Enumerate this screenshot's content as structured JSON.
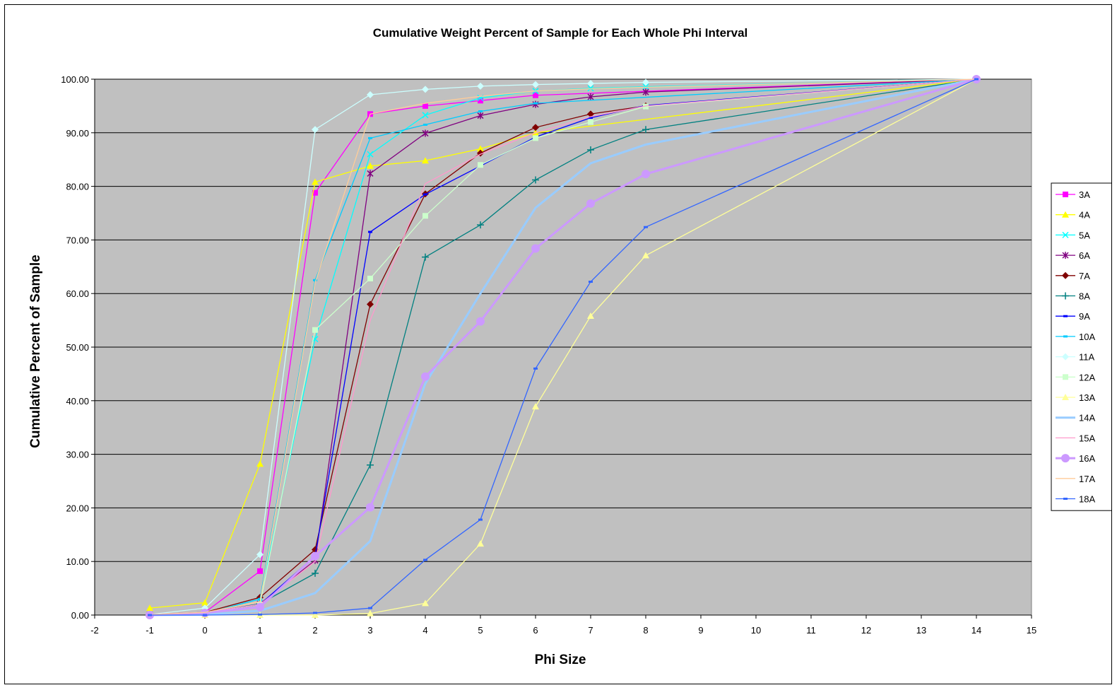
{
  "chart_data": {
    "type": "line",
    "title": "Cumulative Weight Percent of Sample for Each Whole Phi Interval",
    "xlabel": "Phi Size",
    "ylabel": "Cumulative Percent of Sample",
    "xlim": [
      -2,
      15
    ],
    "ylim": [
      0,
      100
    ],
    "x_ticks": [
      "-2",
      "-1",
      "0",
      "1",
      "2",
      "3",
      "4",
      "5",
      "6",
      "7",
      "8",
      "9",
      "10",
      "11",
      "12",
      "13",
      "14",
      "15"
    ],
    "y_ticks": [
      "0.00",
      "10.00",
      "20.00",
      "30.00",
      "40.00",
      "50.00",
      "60.00",
      "70.00",
      "80.00",
      "90.00",
      "100.00"
    ],
    "grid": "horizontal",
    "legend_position": "right",
    "plot_background": "#c0c0c0",
    "series": [
      {
        "name": "3A",
        "color": "#ff00ff",
        "marker": "square",
        "x": [
          -1,
          0,
          1,
          2,
          3,
          4,
          5,
          6,
          14
        ],
        "values": [
          0.1,
          0.5,
          8.2,
          78.8,
          93.5,
          95.0,
          96.0,
          97.0,
          100.0
        ]
      },
      {
        "name": "4A",
        "color": "#ffff00",
        "marker": "triangle",
        "x": [
          -1,
          0,
          1,
          2,
          3,
          4,
          5,
          6,
          14
        ],
        "values": [
          1.3,
          2.3,
          28.2,
          80.8,
          83.8,
          84.8,
          87.0,
          90.0,
          100.0
        ]
      },
      {
        "name": "5A",
        "color": "#00ffff",
        "marker": "x",
        "x": [
          -1,
          0,
          1,
          2,
          3,
          4,
          5,
          6,
          7,
          8,
          14
        ],
        "values": [
          0.1,
          0.3,
          3.0,
          51.5,
          86.0,
          93.3,
          96.5,
          97.8,
          98.3,
          98.6,
          100.0
        ]
      },
      {
        "name": "6A",
        "color": "#800080",
        "marker": "star",
        "x": [
          -1,
          0,
          1,
          2,
          3,
          4,
          5,
          6,
          7,
          8,
          14
        ],
        "values": [
          0.1,
          0.4,
          2.1,
          10.2,
          82.4,
          89.9,
          93.2,
          95.3,
          96.7,
          97.6,
          100.0
        ]
      },
      {
        "name": "7A",
        "color": "#800000",
        "marker": "diamond",
        "x": [
          -1,
          0,
          1,
          2,
          3,
          4,
          5,
          6,
          7,
          8,
          14
        ],
        "values": [
          0.1,
          0.5,
          3.3,
          12.2,
          58.0,
          78.6,
          86.2,
          91.0,
          93.5,
          95.0,
          100.0
        ]
      },
      {
        "name": "8A",
        "color": "#008080",
        "marker": "plus",
        "x": [
          -1,
          0,
          1,
          2,
          3,
          4,
          5,
          6,
          7,
          8,
          14
        ],
        "values": [
          0.1,
          0.4,
          2.1,
          7.8,
          28.0,
          66.8,
          72.8,
          81.2,
          86.8,
          90.6,
          100.0
        ]
      },
      {
        "name": "9A",
        "color": "#0000ff",
        "marker": "dash",
        "x": [
          -1,
          0,
          1,
          2,
          3,
          4,
          5,
          6,
          7,
          8,
          14
        ],
        "values": [
          0.1,
          0.4,
          2.0,
          11.0,
          71.5,
          78.5,
          83.8,
          89.2,
          92.8,
          95.1,
          100.0
        ]
      },
      {
        "name": "10A",
        "color": "#00ccff",
        "marker": "dash",
        "x": [
          -1,
          0,
          1,
          2,
          3,
          4,
          5,
          6,
          14
        ],
        "values": [
          0.1,
          0.3,
          3.0,
          62.5,
          89.0,
          91.5,
          94.0,
          95.5,
          100.0
        ]
      },
      {
        "name": "11A",
        "color": "#ccffff",
        "marker": "diamond",
        "x": [
          -1,
          0,
          1,
          2,
          3,
          4,
          5,
          6,
          7,
          8,
          14
        ],
        "values": [
          0.1,
          1.3,
          11.3,
          90.6,
          97.1,
          98.1,
          98.7,
          99.0,
          99.2,
          99.4,
          100.0
        ]
      },
      {
        "name": "12A",
        "color": "#ccffcc",
        "marker": "square",
        "x": [
          -1,
          0,
          1,
          2,
          3,
          4,
          5,
          6,
          7,
          8,
          14
        ],
        "values": [
          0.1,
          0.4,
          2.0,
          53.2,
          62.8,
          74.5,
          84.0,
          89.0,
          92.0,
          94.9,
          100.0
        ]
      },
      {
        "name": "13A",
        "color": "#ffff99",
        "marker": "triangle",
        "x": [
          -1,
          0,
          1,
          2,
          3,
          4,
          5,
          6,
          7,
          8,
          14
        ],
        "values": [
          0.0,
          0.0,
          0.0,
          0.0,
          0.3,
          2.2,
          13.3,
          38.9,
          55.8,
          67.1,
          100.0
        ]
      },
      {
        "name": "14A",
        "color": "#99ccff",
        "marker": "none",
        "x": [
          -1,
          0,
          1,
          2,
          3,
          4,
          5,
          6,
          7,
          8,
          14
        ],
        "values": [
          0.0,
          0.1,
          0.8,
          4.1,
          13.8,
          43.2,
          60.0,
          76.0,
          84.3,
          87.8,
          100.0
        ]
      },
      {
        "name": "15A",
        "color": "#ff99cc",
        "marker": "none",
        "x": [
          -1,
          0,
          1,
          2,
          3,
          4,
          5,
          6,
          7,
          8,
          14
        ],
        "values": [
          0.1,
          0.5,
          2.0,
          10.0,
          55.0,
          80.5,
          86.0,
          90.0,
          93.0,
          95.0,
          100.0
        ]
      },
      {
        "name": "16A",
        "color": "#cc99ff",
        "marker": "circle",
        "x": [
          -1,
          0,
          1,
          2,
          3,
          4,
          5,
          6,
          7,
          8,
          14
        ],
        "values": [
          0.0,
          0.4,
          1.5,
          11.0,
          20.1,
          44.5,
          54.8,
          68.4,
          76.8,
          82.3,
          100.0
        ]
      },
      {
        "name": "17A",
        "color": "#ffcc99",
        "marker": "none",
        "x": [
          -1,
          0,
          1,
          2,
          3,
          4,
          5,
          6,
          7,
          8,
          14
        ],
        "values": [
          0.1,
          0.5,
          2.5,
          62.0,
          93.5,
          95.5,
          96.8,
          97.8,
          98.2,
          98.5,
          100.0
        ]
      },
      {
        "name": "18A",
        "color": "#3366ff",
        "marker": "dash",
        "x": [
          -1,
          0,
          1,
          2,
          3,
          4,
          5,
          6,
          7,
          8,
          14
        ],
        "values": [
          0.0,
          0.0,
          0.1,
          0.4,
          1.3,
          10.3,
          17.8,
          46.0,
          62.2,
          72.4,
          100.0
        ]
      }
    ]
  }
}
